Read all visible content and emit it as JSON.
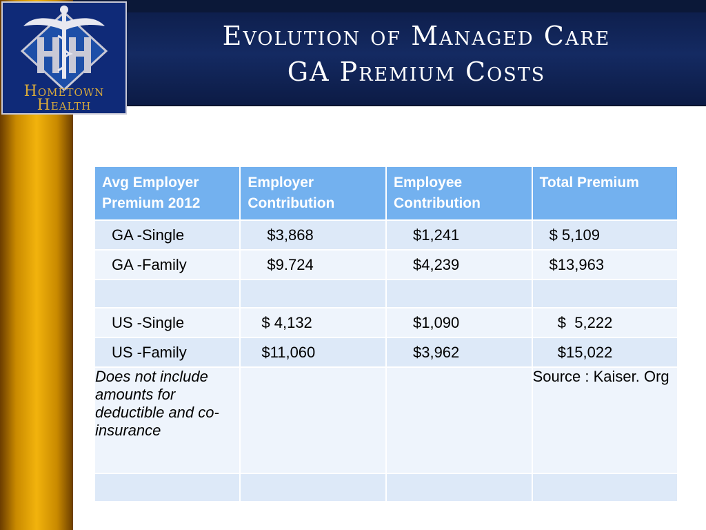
{
  "slide": {
    "title_line1": "Evolution of Managed Care",
    "title_line2": "GA Premium Costs"
  },
  "logo": {
    "line1": "Hometown",
    "line2": "Health",
    "emblem": "caduceus-hh-icon"
  },
  "colors": {
    "banner": "#142a62",
    "gold": "#f2b30c",
    "header": "#73b1ef",
    "row_a": "#dde9f8",
    "row_b": "#eef4fc"
  },
  "table": {
    "headers": [
      "Avg  Employer Premium 2012",
      "Employer Contribution",
      "Employee Contribution",
      "Total Premium"
    ],
    "rows": [
      [
        "GA  -Single",
        "$3,868",
        "$1,241",
        "$  5,109"
      ],
      [
        "GA  -Family",
        "$9.724",
        "$4,239",
        "$13,963"
      ],
      [
        "",
        "",
        "",
        ""
      ],
      [
        "US -Single",
        "$  4,132",
        "$1,090",
        "  $  5,222"
      ],
      [
        "US -Family",
        "$11,060",
        "$3,962",
        "  $15,022"
      ]
    ],
    "note": "Does not include amounts for deductible and co-insurance",
    "source": "Source : Kaiser. Org"
  }
}
